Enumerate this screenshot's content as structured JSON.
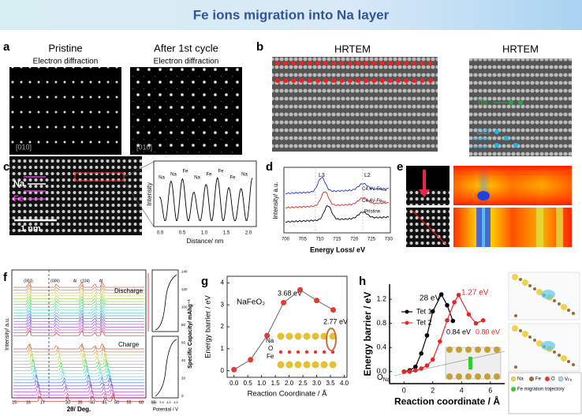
{
  "header": {
    "title": "Fe ions migration into Na layer"
  },
  "figure": {
    "a": {
      "label": "a",
      "left_title": "Pristine",
      "left_subtitle": "Electron diffraction",
      "right_title": "After 1st cycle",
      "right_subtitle": "Electron diffraction",
      "zone": "[010]",
      "zone_right": "[010]"
    },
    "b": {
      "label": "b",
      "left_title": "HRTEM",
      "right_title": "HRTEM",
      "tet": "Tet",
      "oct": "Oct"
    },
    "c": {
      "label": "c",
      "na": "Na",
      "fe": "Fe",
      "scale": "1 nm",
      "ylabel": "Intensity",
      "xlabel": "Distance/ nm",
      "xticks": [
        "0.0",
        "0.5",
        "1.0",
        "1.5",
        "2.0"
      ],
      "peaks": [
        "Na",
        "Na",
        "Fe",
        "Na",
        "Fe",
        "Fe",
        "Fe",
        "Na"
      ]
    },
    "d": {
      "label": "d",
      "ylabel": "Intensity/ a.u.",
      "xlabel": "Energy Loss/ eV",
      "xticks": [
        "700",
        "705",
        "710",
        "715",
        "720",
        "725",
        "730"
      ],
      "l3": "L3",
      "l2": "L2",
      "curve1": {
        "base": "C4.4V-Fe",
        "sub": "Na"
      },
      "curve2": {
        "base": "C4.4V-Fe",
        "sub": "Fe"
      },
      "curve3": "Pristine"
    },
    "e": {
      "label": "e"
    },
    "f": {
      "label": "f",
      "discharge": "Discharge",
      "charge": "Charge",
      "xlabel": "2θ/ Deg.",
      "ylabel": "Intensity/ a.u.",
      "xticks": [
        "15",
        "16",
        "17",
        "30",
        "35",
        "40",
        "45",
        "50",
        "55",
        "60",
        "65"
      ],
      "peaks": [
        "(003)",
        "(006)",
        "Al",
        "(104)",
        "Al"
      ],
      "right_ylabel": "Specific Capacity/ mAhg⁻¹",
      "right_xlabel": "Potential / V",
      "right_yticks": [
        "0",
        "20",
        "40",
        "60",
        "80",
        "100",
        "120",
        "140"
      ],
      "right_xticks": [
        "3.0",
        "3.5",
        "4.0",
        "4.5"
      ]
    },
    "g": {
      "label": "g"
    },
    "h": {
      "label": "h",
      "o_na": {
        "base": "O",
        "sub": "Na"
      },
      "legend": {
        "na": "Na",
        "fe": "Fe",
        "o": "O",
        "v": {
          "base": "V",
          "sub": "Fe"
        },
        "trajectory": "Fe migration trajectory"
      }
    }
  },
  "chart_data": [
    {
      "type": "line",
      "xlabel": "Reaction Coordinate / Å",
      "ylabel": "Energy barrier / eV",
      "annotations": [
        "3.68 eV",
        "2.77 eV",
        "NaFeO₂",
        "Na",
        "O",
        "Fe"
      ],
      "x": [
        0,
        0.6,
        1.2,
        1.8,
        2.4,
        3.0,
        3.6
      ],
      "series": [
        {
          "color": "#666666",
          "marker_color": "#e53a2e",
          "values": [
            0.05,
            0.5,
            1.6,
            3.1,
            3.68,
            3.2,
            2.77
          ]
        }
      ],
      "xlim": [
        -0.25,
        4.1
      ],
      "ylim": [
        -0.3,
        4.3
      ],
      "xticks": [
        {
          "value": 0,
          "label": "0.0"
        },
        {
          "value": 0.5,
          "label": "0.5"
        },
        {
          "value": 1,
          "label": "1.0"
        },
        {
          "value": 1.5,
          "label": "1.5"
        },
        {
          "value": 2,
          "label": "2.0"
        },
        {
          "value": 2.5,
          "label": "2.5"
        },
        {
          "value": 3,
          "label": "3.0"
        },
        {
          "value": 3.5,
          "label": "3.5"
        },
        {
          "value": 4,
          "label": "4.0"
        }
      ],
      "yticks": [
        0,
        1,
        2,
        3,
        4
      ]
    },
    {
      "type": "line",
      "xlabel": "Reaction coordinate / Å",
      "ylabel": "Energy barrier / eV",
      "annotations": [
        "28 eV",
        "1.27 eV",
        "0.84 eV",
        "0.80 eV"
      ],
      "legend": "upper-left",
      "series": [
        {
          "name": "Tet 1",
          "color": "#000000",
          "x": [
            0,
            0.4,
            0.8,
            1.2,
            1.6,
            2.0,
            2.6,
            3.0,
            3.4
          ],
          "values": [
            0,
            0.02,
            0.08,
            0.3,
            0.6,
            1.0,
            1.28,
            1.1,
            0.84
          ]
        },
        {
          "name": "Tet 2",
          "color": "#e8262a",
          "x": [
            0,
            0.4,
            0.8,
            1.2,
            1.6,
            2.0,
            2.5,
            3.0,
            3.5,
            3.8,
            4.5,
            5.0,
            5.5
          ],
          "values": [
            0,
            0,
            0.02,
            0.05,
            0.1,
            0.2,
            0.5,
            0.85,
            1.15,
            1.27,
            0.95,
            0.8,
            0.85
          ]
        }
      ],
      "xlim": [
        -1,
        7
      ],
      "ylim": [
        -0.2,
        1.45
      ],
      "xticks": [
        0,
        2,
        4,
        6
      ],
      "yticks": [
        {
          "value": 0,
          "label": "0.0"
        },
        {
          "value": 0.4,
          "label": "0.4"
        },
        {
          "value": 0.8,
          "label": "0.8"
        },
        {
          "value": 1.2,
          "label": "1.2"
        }
      ]
    }
  ]
}
